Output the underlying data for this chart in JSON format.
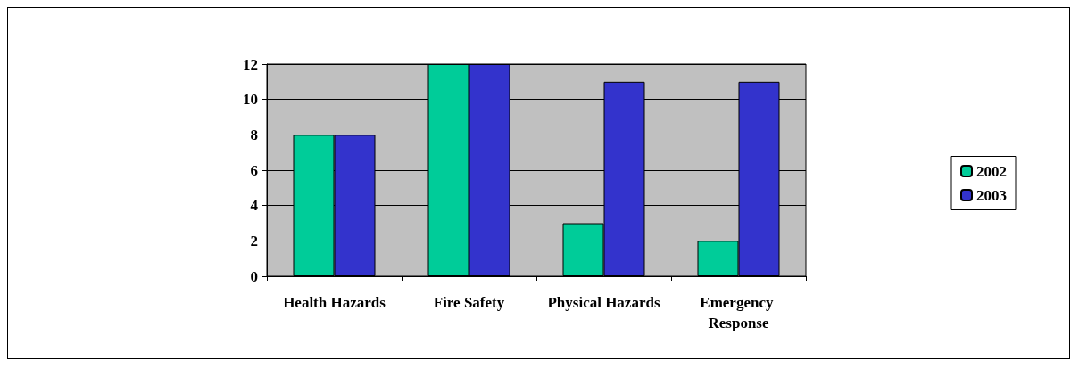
{
  "chart_data": {
    "type": "bar",
    "categories": [
      "Health Hazards",
      "Fire Safety",
      "Physical Hazards",
      "Emergency Response"
    ],
    "series": [
      {
        "name": "2002",
        "color": "#00cc99",
        "values": [
          8,
          12,
          3,
          2
        ]
      },
      {
        "name": "2003",
        "color": "#3333cc",
        "values": [
          8,
          12,
          11,
          11
        ]
      }
    ],
    "ylim": [
      0,
      12
    ],
    "yticks": [
      0,
      2,
      4,
      6,
      8,
      10,
      12
    ],
    "grid": "y",
    "legend": "right"
  }
}
